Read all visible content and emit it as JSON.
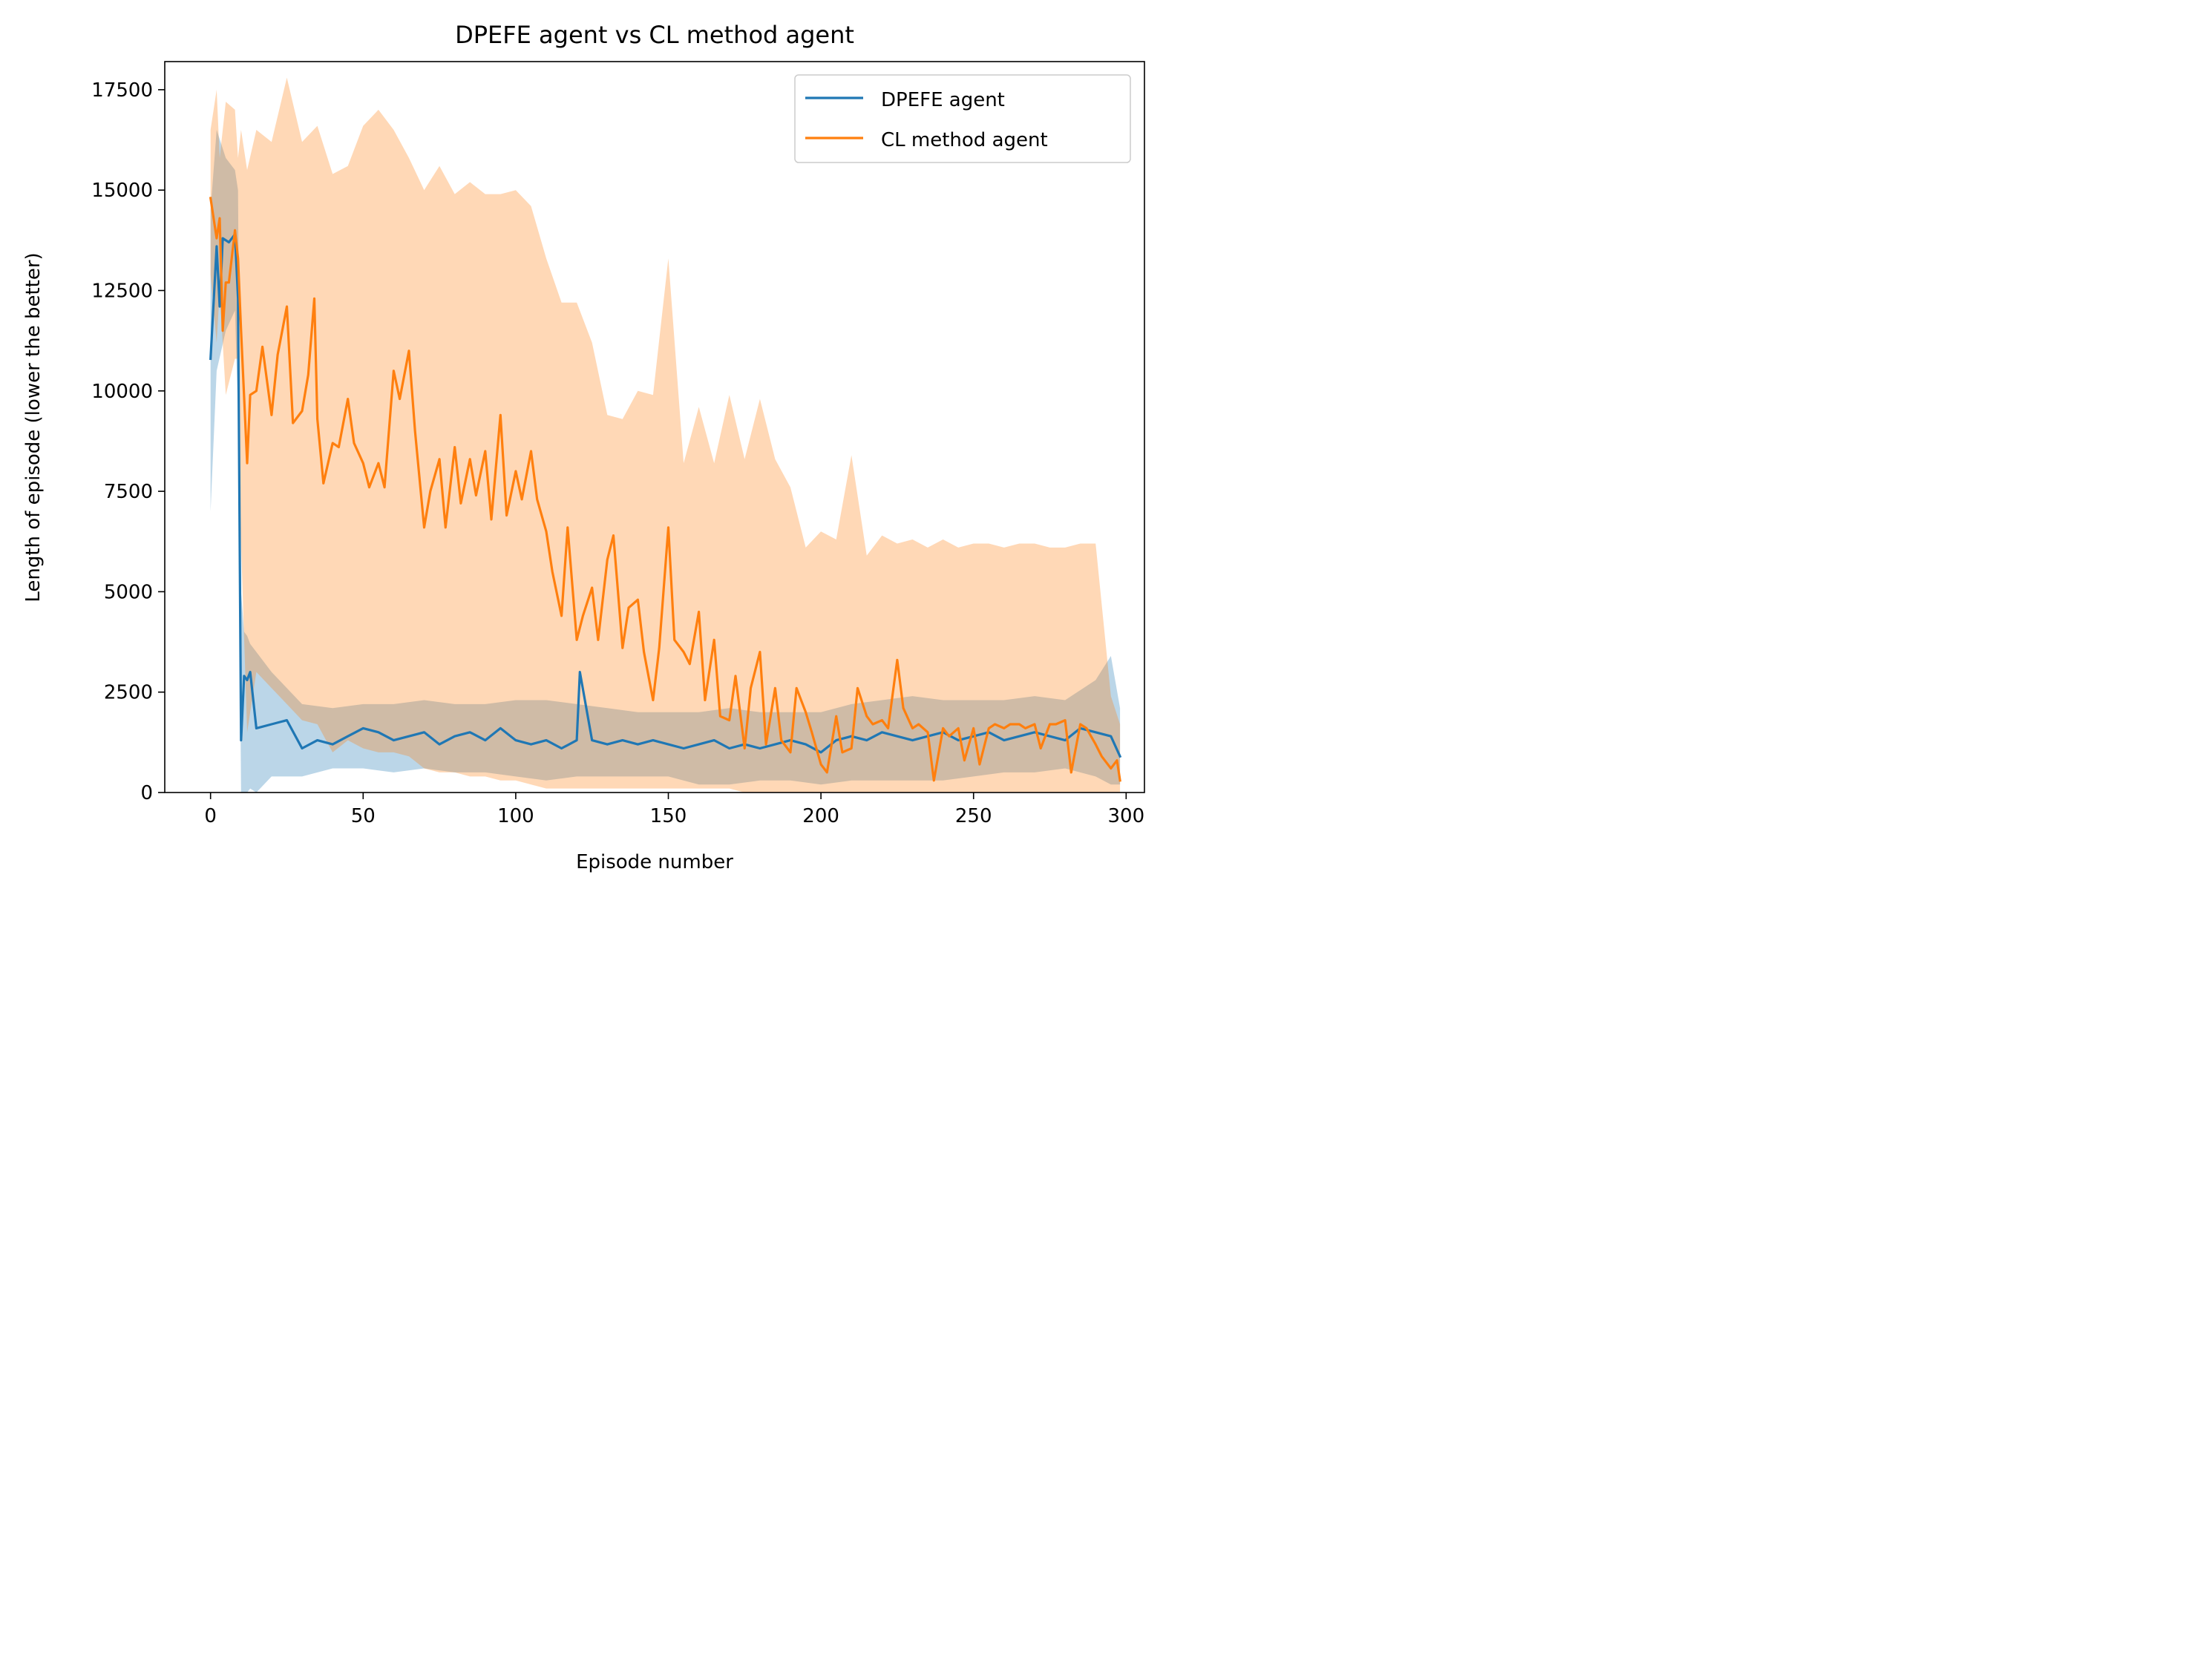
{
  "chart_data": {
    "type": "line",
    "title": "DPEFE agent vs CL method agent",
    "xlabel": "Episode number",
    "ylabel": "Length of episode (lower the better)",
    "xlim": [
      -15,
      306
    ],
    "ylim": [
      0,
      18200
    ],
    "xticks": [
      0,
      50,
      100,
      150,
      200,
      250,
      300
    ],
    "yticks": [
      0,
      2500,
      5000,
      7500,
      10000,
      12500,
      15000,
      17500
    ],
    "grid": false,
    "legend_position": "upper-right",
    "series": [
      {
        "name": "DPEFE agent",
        "color": "#1f77b4",
        "x": [
          0,
          2,
          3,
          4,
          6,
          8,
          9,
          10,
          11,
          12,
          13,
          15,
          20,
          25,
          30,
          35,
          40,
          45,
          50,
          55,
          60,
          65,
          70,
          75,
          80,
          85,
          90,
          95,
          100,
          105,
          110,
          115,
          120,
          121,
          125,
          130,
          135,
          140,
          145,
          150,
          155,
          160,
          165,
          170,
          175,
          180,
          185,
          190,
          195,
          200,
          205,
          210,
          215,
          220,
          225,
          230,
          235,
          240,
          245,
          250,
          255,
          260,
          265,
          270,
          275,
          280,
          285,
          290,
          295,
          298
        ],
        "values": [
          10800,
          13600,
          12100,
          13800,
          13700,
          13900,
          12300,
          1300,
          2900,
          2800,
          3000,
          1600,
          1700,
          1800,
          1100,
          1300,
          1200,
          1400,
          1600,
          1500,
          1300,
          1400,
          1500,
          1200,
          1400,
          1500,
          1300,
          1600,
          1300,
          1200,
          1300,
          1100,
          1300,
          3000,
          1300,
          1200,
          1300,
          1200,
          1300,
          1200,
          1100,
          1200,
          1300,
          1100,
          1200,
          1100,
          1200,
          1300,
          1200,
          1000,
          1300,
          1400,
          1300,
          1500,
          1400,
          1300,
          1400,
          1500,
          1300,
          1400,
          1500,
          1300,
          1400,
          1500,
          1400,
          1300,
          1600,
          1500,
          1400,
          900
        ]
      },
      {
        "name": "CL method agent",
        "color": "#ff7f0e",
        "x": [
          0,
          2,
          3,
          4,
          5,
          6,
          8,
          9,
          10,
          12,
          13,
          15,
          17,
          20,
          22,
          25,
          27,
          30,
          32,
          34,
          35,
          37,
          40,
          42,
          45,
          47,
          50,
          52,
          55,
          57,
          60,
          62,
          65,
          67,
          70,
          72,
          75,
          77,
          80,
          82,
          85,
          87,
          90,
          92,
          95,
          97,
          100,
          102,
          105,
          107,
          110,
          112,
          115,
          117,
          120,
          122,
          125,
          127,
          130,
          132,
          135,
          137,
          140,
          142,
          145,
          147,
          150,
          152,
          155,
          157,
          160,
          162,
          165,
          167,
          170,
          172,
          175,
          177,
          180,
          182,
          185,
          187,
          190,
          192,
          195,
          197,
          200,
          202,
          205,
          207,
          210,
          212,
          215,
          217,
          220,
          222,
          225,
          227,
          230,
          232,
          235,
          237,
          240,
          242,
          245,
          247,
          250,
          252,
          255,
          257,
          260,
          262,
          265,
          267,
          270,
          272,
          275,
          277,
          280,
          282,
          285,
          287,
          290,
          292,
          295,
          297,
          298
        ],
        "values": [
          14800,
          13800,
          14300,
          11500,
          12700,
          12700,
          14000,
          13300,
          11500,
          8200,
          9900,
          10000,
          11100,
          9400,
          10900,
          12100,
          9200,
          9500,
          10400,
          12300,
          9300,
          7700,
          8700,
          8600,
          9800,
          8700,
          8200,
          7600,
          8200,
          7600,
          10500,
          9800,
          11000,
          9000,
          6600,
          7500,
          8300,
          6600,
          8600,
          7200,
          8300,
          7400,
          8500,
          6800,
          9400,
          6900,
          8000,
          7300,
          8500,
          7300,
          6500,
          5500,
          4400,
          6600,
          3800,
          4400,
          5100,
          3800,
          5800,
          6400,
          3600,
          4600,
          4800,
          3500,
          2300,
          3600,
          6600,
          3800,
          3500,
          3200,
          4500,
          2300,
          3800,
          1900,
          1800,
          2900,
          1100,
          2600,
          3500,
          1200,
          2600,
          1300,
          1000,
          2600,
          2000,
          1500,
          700,
          500,
          1900,
          1000,
          1100,
          2600,
          1900,
          1700,
          1800,
          1600,
          3300,
          2100,
          1600,
          1700,
          1500,
          300,
          1600,
          1400,
          1600,
          800,
          1600,
          700,
          1600,
          1700,
          1600,
          1700,
          1700,
          1600,
          1700,
          1100,
          1700,
          1700,
          1800,
          500,
          1700,
          1600,
          1200,
          900,
          600,
          800,
          300
        ]
      }
    ],
    "bands": [
      {
        "series": "DPEFE agent",
        "color": "#1f77b4",
        "opacity": 0.3,
        "x": [
          0,
          2,
          5,
          8,
          9,
          10,
          11,
          12,
          13,
          15,
          20,
          30,
          40,
          50,
          60,
          70,
          80,
          90,
          100,
          110,
          120,
          130,
          140,
          150,
          160,
          170,
          180,
          190,
          200,
          210,
          220,
          230,
          240,
          250,
          260,
          270,
          280,
          290,
          295,
          298
        ],
        "upper": [
          14500,
          16500,
          15800,
          15500,
          15000,
          5000,
          4000,
          3900,
          3700,
          3500,
          3000,
          2200,
          2100,
          2200,
          2200,
          2300,
          2200,
          2200,
          2300,
          2300,
          2200,
          2100,
          2000,
          2000,
          2000,
          2100,
          2000,
          2000,
          2000,
          2200,
          2300,
          2400,
          2300,
          2300,
          2300,
          2400,
          2300,
          2800,
          3400,
          2100
        ],
        "lower": [
          7000,
          10500,
          11500,
          12000,
          9500,
          0,
          0,
          0,
          100,
          0,
          400,
          400,
          600,
          600,
          500,
          600,
          500,
          500,
          400,
          300,
          400,
          400,
          400,
          400,
          200,
          200,
          300,
          300,
          200,
          300,
          300,
          300,
          300,
          400,
          500,
          500,
          600,
          400,
          200,
          200
        ]
      },
      {
        "series": "CL method agent",
        "color": "#ff7f0e",
        "opacity": 0.3,
        "x": [
          0,
          2,
          3,
          5,
          8,
          9,
          10,
          12,
          15,
          20,
          25,
          30,
          35,
          40,
          45,
          50,
          55,
          60,
          65,
          70,
          75,
          80,
          85,
          90,
          95,
          100,
          105,
          110,
          115,
          120,
          125,
          130,
          135,
          140,
          145,
          150,
          155,
          160,
          165,
          170,
          175,
          180,
          185,
          190,
          195,
          200,
          205,
          210,
          215,
          220,
          225,
          230,
          235,
          240,
          245,
          250,
          255,
          260,
          265,
          270,
          275,
          280,
          285,
          290,
          295,
          298
        ],
        "upper": [
          16500,
          17500,
          15800,
          17200,
          17000,
          15800,
          16500,
          15500,
          16500,
          16200,
          17800,
          16200,
          16600,
          15400,
          15600,
          16600,
          17000,
          16500,
          15800,
          15000,
          15600,
          14900,
          15200,
          14900,
          14900,
          15000,
          14600,
          13300,
          12200,
          12200,
          11200,
          9400,
          9300,
          10000,
          9900,
          13300,
          8200,
          9600,
          8200,
          9900,
          8300,
          9800,
          8300,
          7600,
          6100,
          6500,
          6300,
          8400,
          5900,
          6400,
          6200,
          6300,
          6100,
          6300,
          6100,
          6200,
          6200,
          6100,
          6200,
          6200,
          6100,
          6100,
          6200,
          6200,
          2400,
          1700
        ],
        "lower": [
          12900,
          11200,
          12500,
          9900,
          10800,
          10800,
          6200,
          1500,
          3000,
          2600,
          2200,
          1800,
          1700,
          1000,
          1300,
          1100,
          1000,
          1000,
          900,
          600,
          500,
          500,
          400,
          400,
          300,
          300,
          200,
          100,
          100,
          100,
          100,
          100,
          100,
          100,
          100,
          100,
          100,
          100,
          100,
          100,
          0,
          0,
          0,
          0,
          0,
          0,
          0,
          0,
          0,
          0,
          0,
          0,
          0,
          0,
          0,
          0,
          0,
          0,
          0,
          0,
          0,
          0,
          0,
          0,
          0,
          0
        ]
      }
    ]
  }
}
